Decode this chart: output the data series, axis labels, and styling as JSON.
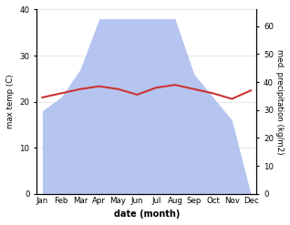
{
  "months": [
    "Jan",
    "Feb",
    "Mar",
    "Apr",
    "May",
    "Jun",
    "Jul",
    "Aug",
    "Sep",
    "Oct",
    "Nov",
    "Dec"
  ],
  "temperature": [
    34.5,
    36.0,
    37.5,
    38.5,
    37.5,
    35.5,
    38.0,
    39.0,
    37.5,
    36.0,
    34.0,
    37.0
  ],
  "precipitation": [
    18,
    21,
    27,
    38,
    38,
    38,
    38,
    38,
    26,
    21,
    16,
    0
  ],
  "temp_ylim": [
    0,
    40
  ],
  "precip_ylim": [
    0,
    66
  ],
  "temp_yticks": [
    0,
    10,
    20,
    30,
    40
  ],
  "precip_yticks": [
    0,
    10,
    20,
    30,
    40,
    50,
    60
  ],
  "temp_color": "#cc3333",
  "precip_color": "#aabbee",
  "xlabel": "date (month)",
  "ylabel_left": "max temp (C)",
  "ylabel_right": "med. precipitation (kg/m2)",
  "background_color": "#ffffff"
}
